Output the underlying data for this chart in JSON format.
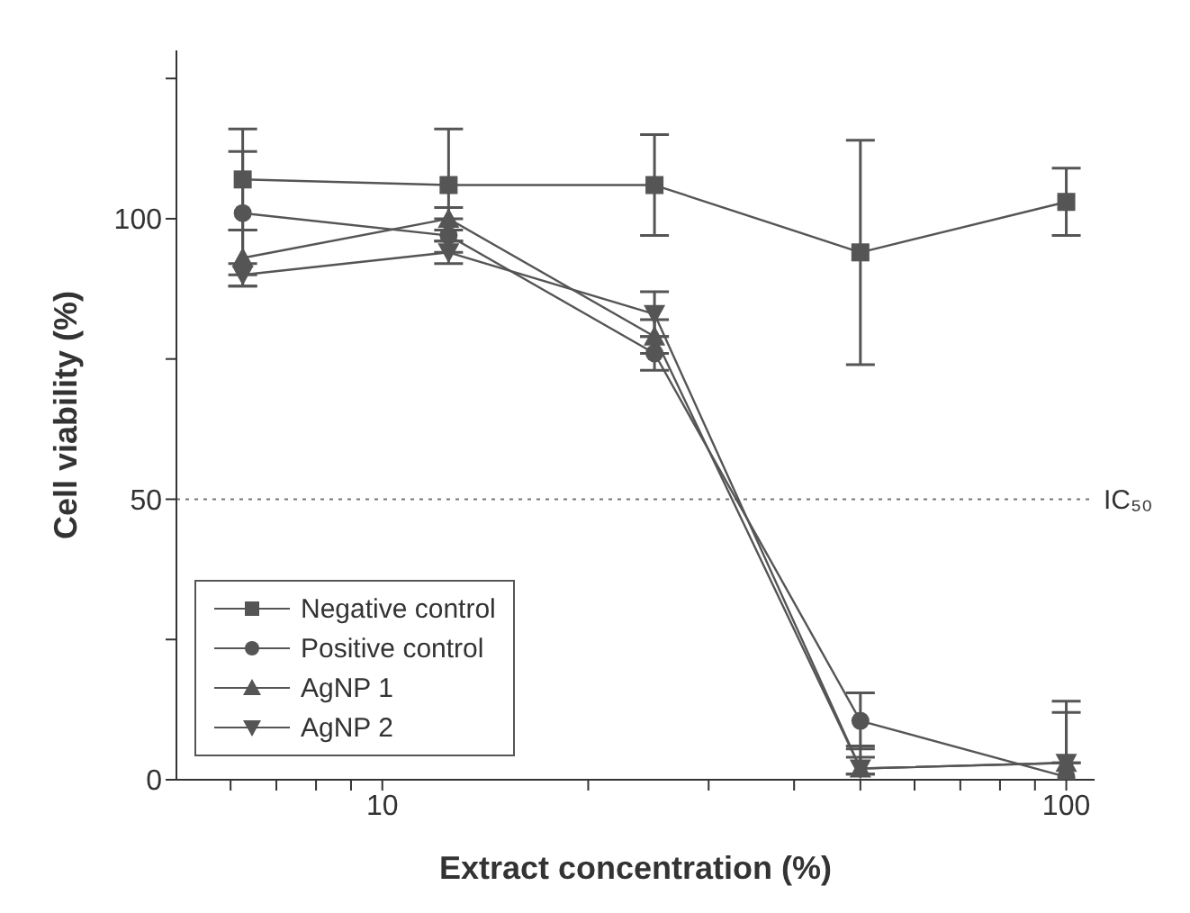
{
  "chart_data": {
    "type": "line",
    "xlabel": "Extract concentration (%)",
    "ylabel": "Cell viability (%)",
    "log": "x",
    "xlim": [
      5,
      110
    ],
    "ylim": [
      0,
      130
    ],
    "xticks": [
      {
        "value": 6,
        "label": null
      },
      {
        "value": 7,
        "label": null
      },
      {
        "value": 8,
        "label": null
      },
      {
        "value": 9,
        "label": null
      },
      10,
      {
        "value": 20,
        "label": null
      },
      {
        "value": 30,
        "label": null
      },
      {
        "value": 40,
        "label": null
      },
      {
        "value": 50,
        "label": null
      },
      {
        "value": 60,
        "label": null
      },
      {
        "value": 70,
        "label": null
      },
      {
        "value": 80,
        "label": null
      },
      {
        "value": 90,
        "label": null
      },
      100
    ],
    "yticks": [
      0,
      {
        "value": 25,
        "label": null
      },
      50,
      {
        "value": 75,
        "label": null
      },
      100,
      {
        "value": 125,
        "label": null
      }
    ],
    "x": [
      6.25,
      12.5,
      25,
      50,
      100
    ],
    "series": [
      {
        "name": "Negative control",
        "color": "#555555",
        "marker": "square",
        "values": [
          107,
          106,
          106,
          94,
          103
        ],
        "errors": [
          9,
          10,
          9,
          20,
          6
        ]
      },
      {
        "name": "Positive control",
        "color": "#555555",
        "marker": "circle",
        "values": [
          101,
          97,
          76,
          10.5,
          0.5
        ],
        "errors": [
          11,
          3,
          3,
          5,
          null
        ]
      },
      {
        "name": "AgNP 1",
        "color": "#555555",
        "marker": "triangle",
        "values": [
          93,
          100,
          79,
          2,
          3
        ],
        "errors": [
          5,
          2,
          3,
          [
            1,
            6
          ],
          [
            3,
            14
          ]
        ]
      },
      {
        "name": "AgNP 2",
        "color": "#555555",
        "marker": "triangle-down",
        "values": [
          90,
          94,
          83,
          2,
          3
        ],
        "errors": [
          2,
          2,
          4,
          [
            1,
            4
          ],
          [
            3,
            12
          ]
        ]
      }
    ],
    "ref_lines": [
      {
        "axis": "y",
        "value": 50,
        "label": "IC₅₀",
        "color": "#777777",
        "line_style": "dotted"
      }
    ],
    "legend": "bottom left",
    "line_style": "solid"
  }
}
